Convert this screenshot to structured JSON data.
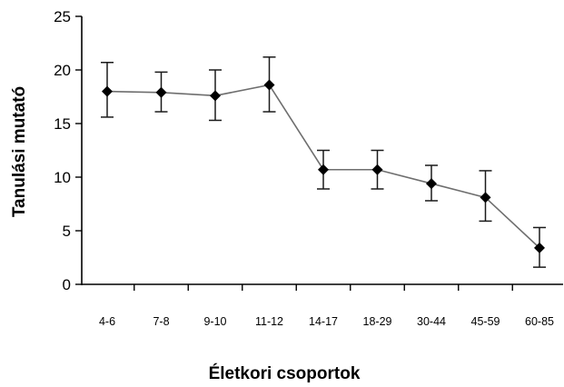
{
  "chart_data": {
    "type": "line",
    "title": "",
    "xlabel": "Életkori csoportok",
    "ylabel": "Tanulási mutató",
    "categories": [
      "4-6",
      "7-8",
      "9-10",
      "11-12",
      "14-17",
      "18-29",
      "30-44",
      "45-59",
      "60-85"
    ],
    "series": [
      {
        "values": [
          18.0,
          17.9,
          17.6,
          18.6,
          10.7,
          10.7,
          9.4,
          8.1,
          3.4
        ],
        "error_low": [
          15.6,
          16.1,
          15.3,
          16.1,
          8.9,
          8.9,
          7.8,
          5.9,
          1.6
        ],
        "error_high": [
          20.7,
          19.8,
          20.0,
          21.2,
          12.5,
          12.5,
          11.1,
          10.6,
          5.3
        ],
        "color": "#000000",
        "line_color": "#6e6e6e",
        "marker": "diamond"
      }
    ],
    "yticks": [
      0,
      5,
      10,
      15,
      20,
      25
    ],
    "ylim": [
      0,
      25
    ],
    "grid": false,
    "legend": "none"
  }
}
